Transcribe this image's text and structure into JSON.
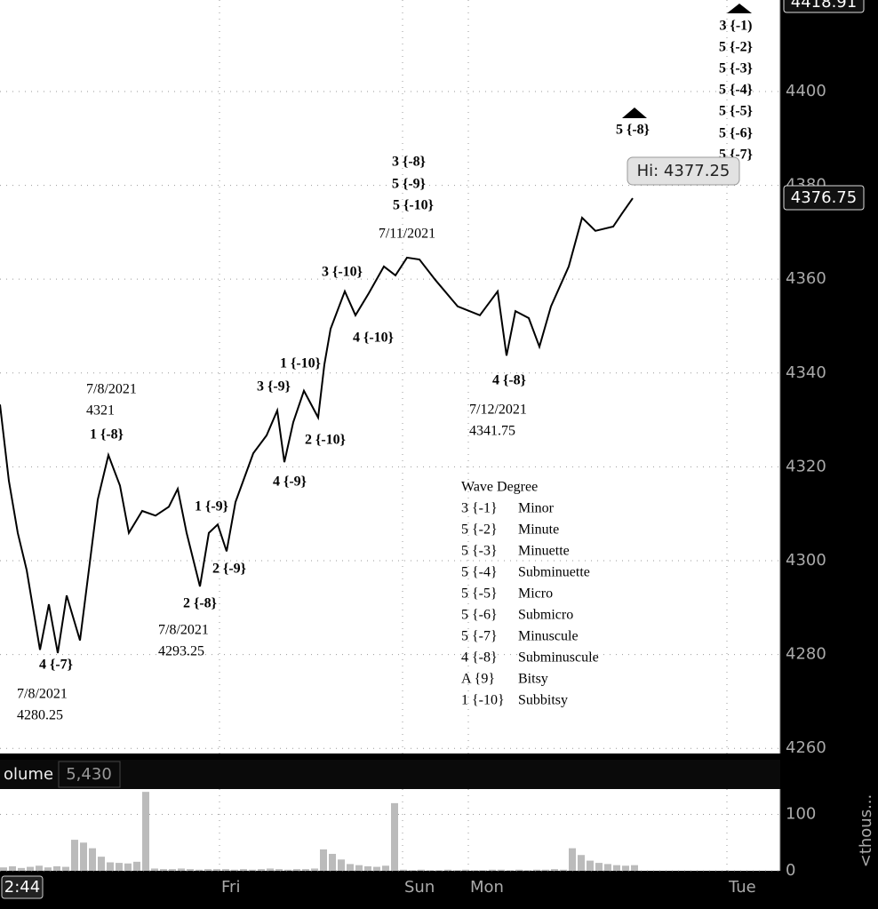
{
  "chart_data": [
    {
      "type": "line",
      "color": "#000000",
      "x": [
        0,
        10,
        20,
        30,
        45,
        55,
        65,
        75,
        90,
        100,
        110,
        122,
        135,
        145,
        160,
        175,
        190,
        200,
        210,
        225,
        235,
        245,
        255,
        265,
        285,
        300,
        312,
        320,
        330,
        342,
        358,
        365,
        372,
        388,
        400,
        415,
        432,
        445,
        458,
        472,
        490,
        515,
        540,
        560,
        570,
        580,
        595,
        607,
        620,
        640,
        655,
        670,
        690,
        700,
        712
      ],
      "values": [
        4333.3,
        4317,
        4305.9,
        4298,
        4281,
        4290.7,
        4280.3,
        4292.6,
        4283,
        4298,
        4313,
        4322.5,
        4316,
        4305.9,
        4310.6,
        4309.6,
        4311.5,
        4315.3,
        4305.9,
        4294.5,
        4305.9,
        4307.7,
        4302,
        4312.5,
        4322.9,
        4326.7,
        4332,
        4321,
        4329.5,
        4336.2,
        4330.5,
        4341.8,
        4349.4,
        4357.4,
        4352.3,
        4357,
        4362.7,
        4360.8,
        4364.6,
        4364.2,
        4359.8,
        4354.2,
        4352.3,
        4357.4,
        4343.7,
        4353.2,
        4351.7,
        4345.6,
        4354.2,
        4362.7,
        4373.1,
        4370.3,
        4371.2,
        4374,
        4377.25
      ],
      "xlim": [
        0,
        880
      ],
      "xticks": [
        {
          "value": 2,
          "label": "2:44"
        },
        {
          "value": 247,
          "label": "Fri"
        },
        {
          "value": 453,
          "label": "Sun"
        },
        {
          "value": 527,
          "label": "Mon"
        },
        {
          "value": 818,
          "label": "Tue"
        }
      ],
      "ylim": [
        4258.9,
        4419.5
      ],
      "yticks": [
        4260,
        4280,
        4300,
        4320,
        4340,
        4360,
        4380,
        4400
      ],
      "grid": true,
      "top_label": "4418.91",
      "hi_label": "Hi: 4377.25",
      "last_label": "4376.75",
      "annotations": [
        "3 {-1)",
        "5 {-2}",
        "5 {-3}",
        "5 {-4}",
        "5 {-5}",
        "5 {-6}",
        "5 {-7}",
        "5 {-8}",
        "3 {-8}",
        "5 {-9}",
        "5 {-10}",
        "7/11/2021",
        "3 {-10}",
        "4 {-10}",
        "1 {-10}",
        "3 {-9}",
        "2 {-10}",
        "4 {-9}",
        "4 {-8}",
        "7/12/2021",
        "4341.75",
        "7/8/2021",
        "4321",
        "1 {-8}",
        "1 {-9}",
        "2 {-9}",
        "2 {-8}",
        "7/8/2021",
        "4293.25",
        "4 {-7}",
        "7/8/2021",
        "4280.25"
      ],
      "legend": {
        "title": "Wave Degree",
        "rows": [
          [
            "3 {-1}",
            "Minor"
          ],
          [
            "5 {-2}",
            "Minute"
          ],
          [
            "5 {-3}",
            "Minuette"
          ],
          [
            "5 {-4}",
            "Subminuette"
          ],
          [
            "5 {-5}",
            "Micro"
          ],
          [
            "5 {-6}",
            "Submicro"
          ],
          [
            "5 {-7}",
            "Minuscule"
          ],
          [
            "4 {-8}",
            "Subminuscule"
          ],
          [
            "A {9}",
            "Bitsy"
          ],
          [
            "1 {-10}",
            "Subbitsy"
          ]
        ]
      }
    },
    {
      "type": "bar",
      "title": "olume",
      "header_value": "5,430",
      "color": "#bbbbbb",
      "x": [
        0,
        10,
        20,
        30,
        40,
        50,
        60,
        70,
        80,
        90,
        100,
        110,
        120,
        130,
        140,
        150,
        160,
        170,
        180,
        190,
        200,
        210,
        220,
        230,
        240,
        250,
        260,
        270,
        280,
        290,
        300,
        310,
        320,
        330,
        340,
        350,
        360,
        370,
        380,
        390,
        400,
        410,
        420,
        430,
        440,
        450,
        460,
        470,
        480,
        490,
        500,
        510,
        520,
        530,
        540,
        550,
        560,
        570,
        580,
        590,
        600,
        610,
        620,
        630,
        640,
        650,
        660,
        670,
        680,
        690,
        700,
        710
      ],
      "values": [
        6,
        8,
        5,
        7,
        9,
        6,
        8,
        7,
        55,
        50,
        40,
        25,
        15,
        14,
        13,
        16,
        140,
        4,
        3,
        3,
        4,
        3,
        2,
        3,
        3,
        3,
        2,
        3,
        2,
        3,
        4,
        3,
        2,
        3,
        3,
        4,
        38,
        30,
        20,
        12,
        10,
        8,
        7,
        9,
        120,
        2,
        1,
        2,
        1,
        1,
        2,
        1,
        2,
        1,
        1,
        2,
        2,
        1,
        2,
        1,
        2,
        2,
        3,
        2,
        40,
        28,
        18,
        14,
        12,
        10,
        9,
        10
      ],
      "ylim": [
        0,
        145
      ],
      "yticks": [
        0,
        100
      ],
      "y_label": "<thous..."
    }
  ]
}
